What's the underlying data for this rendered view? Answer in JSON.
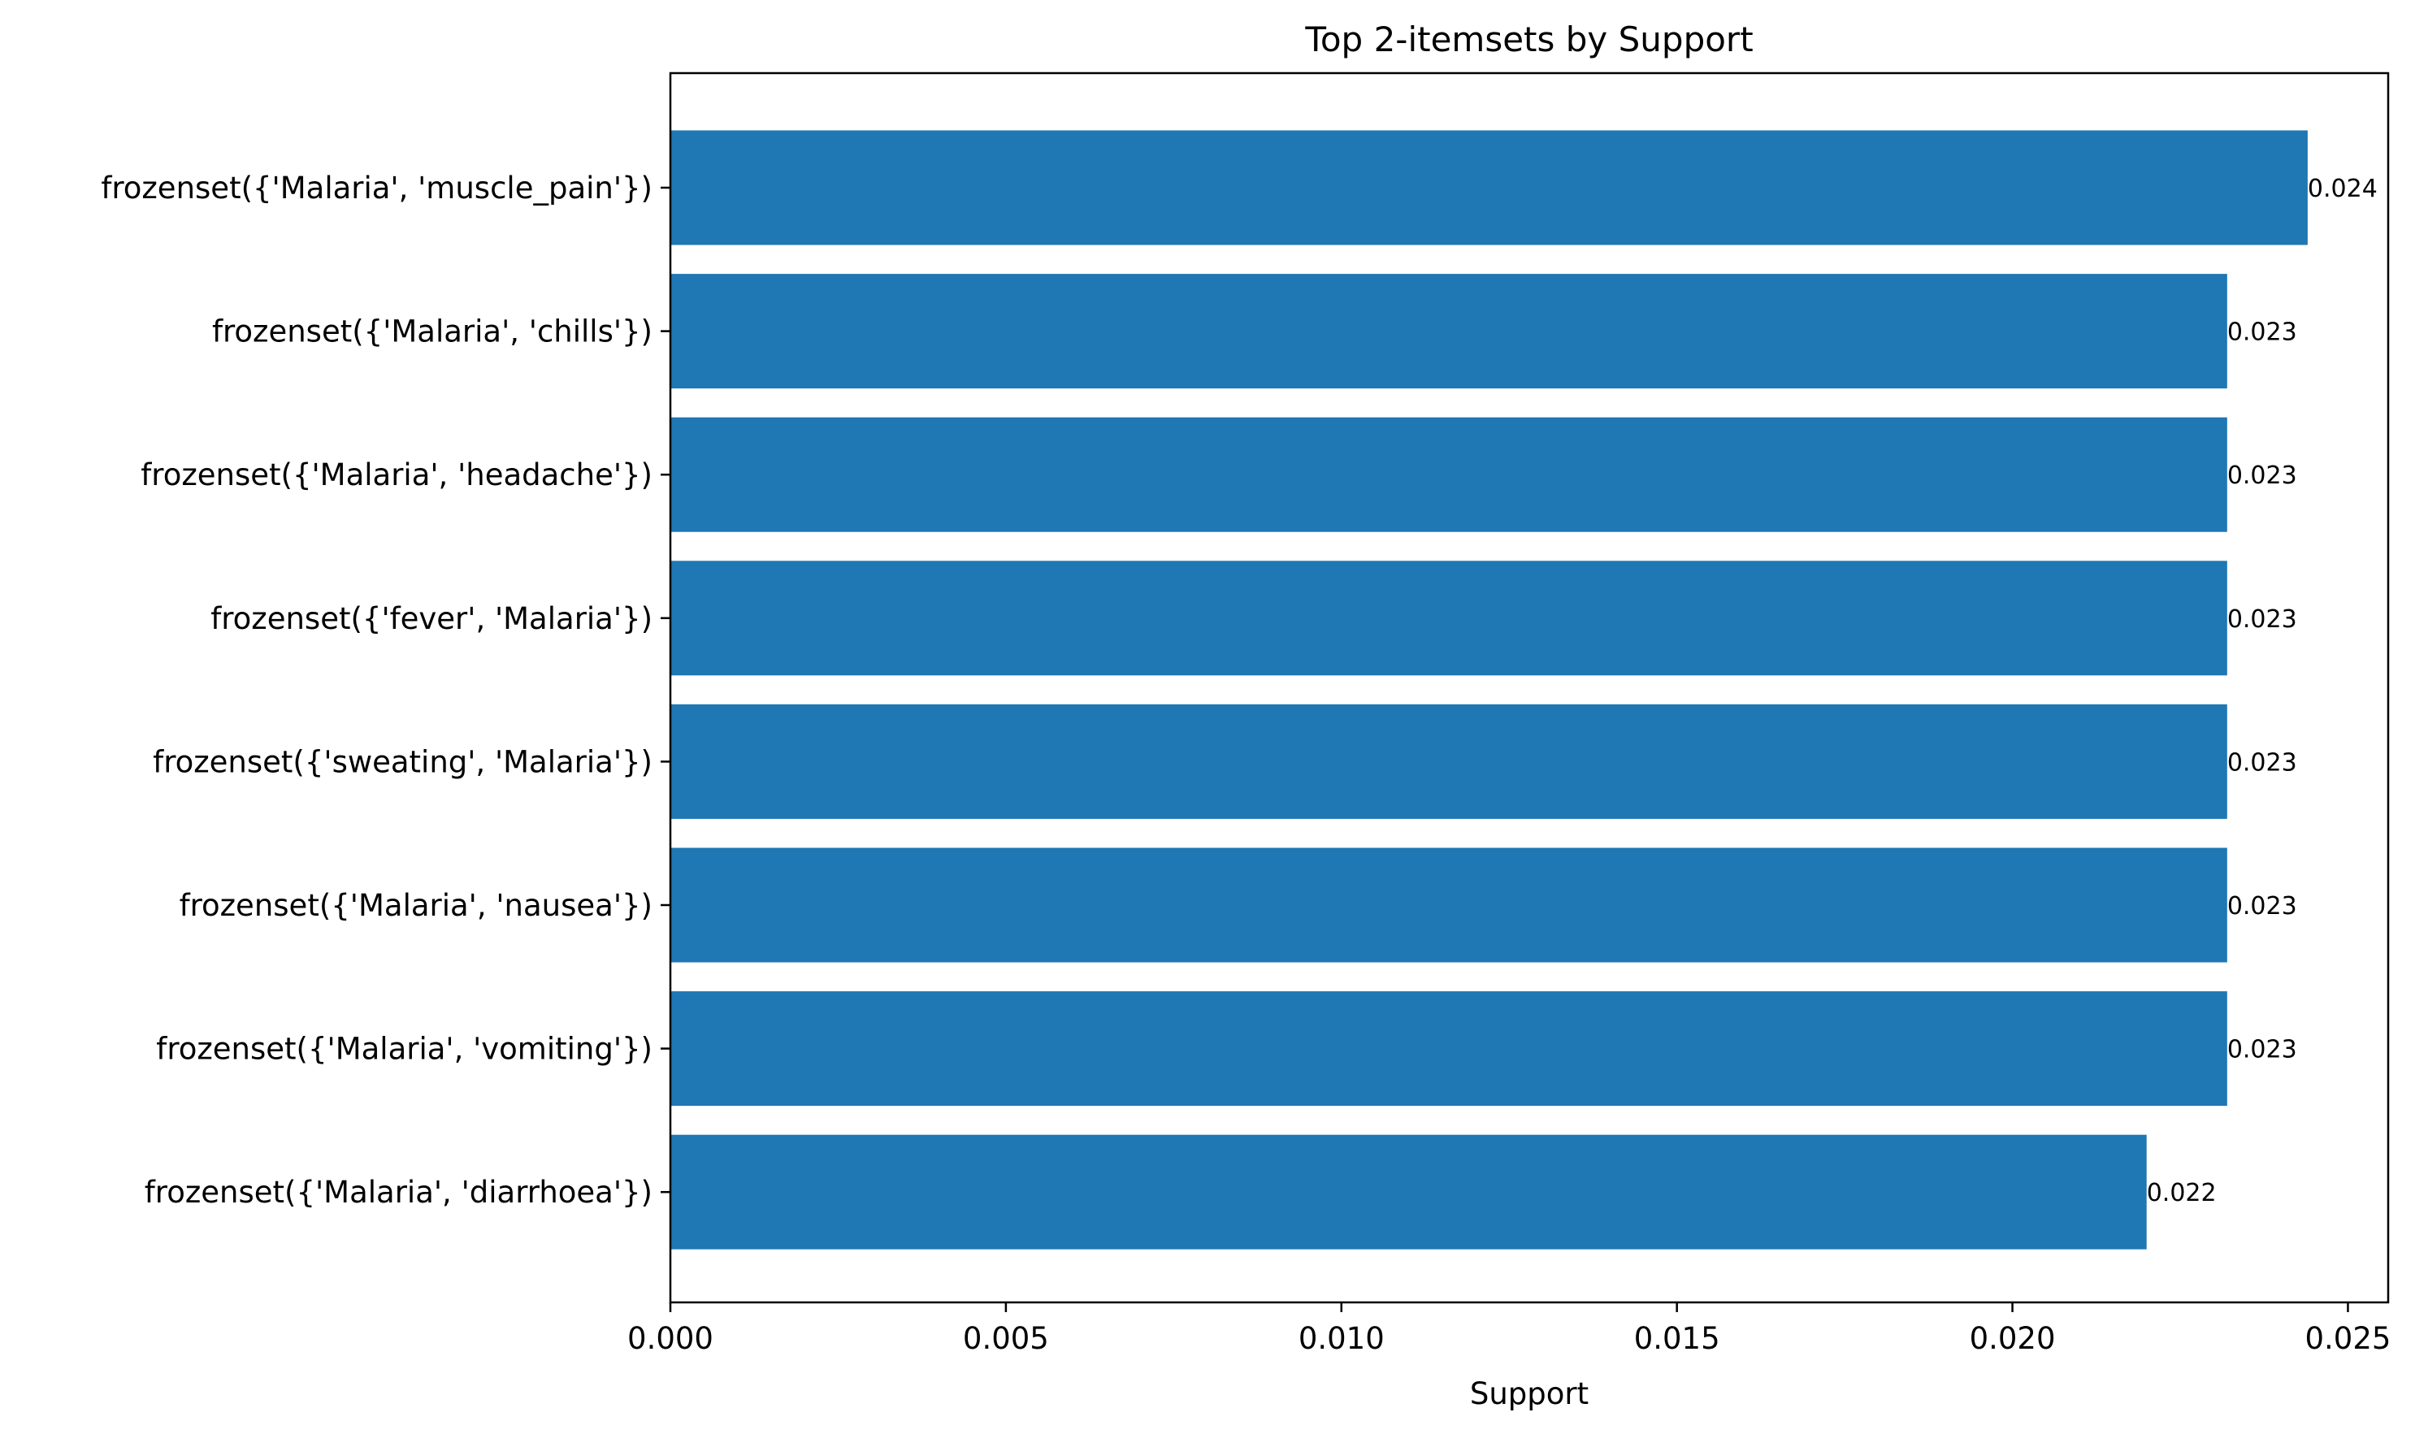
{
  "chart_data": {
    "type": "bar",
    "orientation": "horizontal",
    "title": "Top 2-itemsets by Support",
    "xlabel": "Support",
    "ylabel": "",
    "xlim": [
      0,
      0.0256
    ],
    "xticks": [
      0.0,
      0.005,
      0.01,
      0.015,
      0.02,
      0.025
    ],
    "xtick_labels": [
      "0.000",
      "0.005",
      "0.010",
      "0.015",
      "0.020",
      "0.025"
    ],
    "grid": false,
    "bar_color": "#1f77b4",
    "categories": [
      "frozenset({'Malaria', 'muscle_pain'})",
      "frozenset({'Malaria', 'chills'})",
      "frozenset({'Malaria', 'headache'})",
      "frozenset({'fever', 'Malaria'})",
      "frozenset({'sweating', 'Malaria'})",
      "frozenset({'Malaria', 'nausea'})",
      "frozenset({'Malaria', 'vomiting'})",
      "frozenset({'Malaria', 'diarrhoea'})"
    ],
    "values": [
      0.0244,
      0.0232,
      0.0232,
      0.0232,
      0.0232,
      0.0232,
      0.0232,
      0.022
    ],
    "value_labels": [
      "0.024",
      "0.023",
      "0.023",
      "0.023",
      "0.023",
      "0.023",
      "0.023",
      "0.022"
    ]
  }
}
